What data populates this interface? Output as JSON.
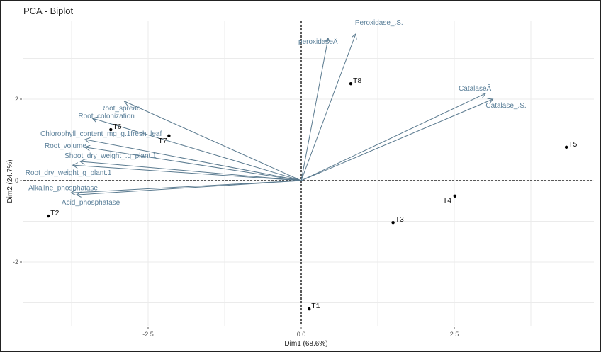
{
  "chart_data": {
    "type": "scatter",
    "title": "PCA - Biplot",
    "xlabel": "Dim1 (68.6%)",
    "ylabel": "Dim2 (24.7%)",
    "xlim": [
      -4.9,
      4.9
    ],
    "ylim": [
      -3.4,
      4.2
    ],
    "x_ticks": [
      -2.5,
      0.0,
      2.5
    ],
    "x_tick_labels": [
      "-2.5",
      "0.0",
      "2.5"
    ],
    "y_ticks": [
      -2,
      0,
      2
    ],
    "y_tick_labels": [
      "-2",
      "0",
      "2"
    ],
    "grid": true,
    "reference_lines": {
      "x": 0,
      "y": 0,
      "style": "dashed"
    },
    "individuals": [
      {
        "label": "T1",
        "x": 0.13,
        "y": -3.15
      },
      {
        "label": "T2",
        "x": -4.13,
        "y": -0.87
      },
      {
        "label": "T3",
        "x": 1.5,
        "y": -1.03
      },
      {
        "label": "T4",
        "x": 2.51,
        "y": -0.38
      },
      {
        "label": "T5",
        "x": 4.33,
        "y": 0.82
      },
      {
        "label": "T6",
        "x": -3.11,
        "y": 1.25
      },
      {
        "label": "T7",
        "x": -2.16,
        "y": 1.1
      },
      {
        "label": "T8",
        "x": 0.81,
        "y": 2.38
      }
    ],
    "variables": [
      {
        "label": "Peroxidase_.S.",
        "x": 0.89,
        "y": 3.6
      },
      {
        "label": "peroxidaseÂ",
        "x": 0.44,
        "y": 3.5
      },
      {
        "label": "CatalaseÂ",
        "x": 3.01,
        "y": 2.14
      },
      {
        "label": "Catalase_.S.",
        "x": 3.13,
        "y": 2.0
      },
      {
        "label": "Root_spread",
        "x": -2.89,
        "y": 1.95
      },
      {
        "label": "Root_colonization",
        "x": -3.41,
        "y": 1.53
      },
      {
        "label": "Chlorophyll_content_mg_g.1fresh_leaf",
        "x": -3.53,
        "y": 1.01
      },
      {
        "label": "Root_volume",
        "x": -3.53,
        "y": 0.82
      },
      {
        "label": "Shoot_dry_weight_.g_plant.1",
        "x": -3.61,
        "y": 0.47
      },
      {
        "label": "Root_dry_weight_g_plant.1",
        "x": -3.73,
        "y": 0.38
      },
      {
        "label": "Alkaline_phosphatase",
        "x": -3.76,
        "y": -0.3
      },
      {
        "label": "Acid_phosphatase",
        "x": -3.67,
        "y": -0.35
      }
    ],
    "colors": {
      "variables": "#5a7f99",
      "individuals": "#000000"
    }
  }
}
